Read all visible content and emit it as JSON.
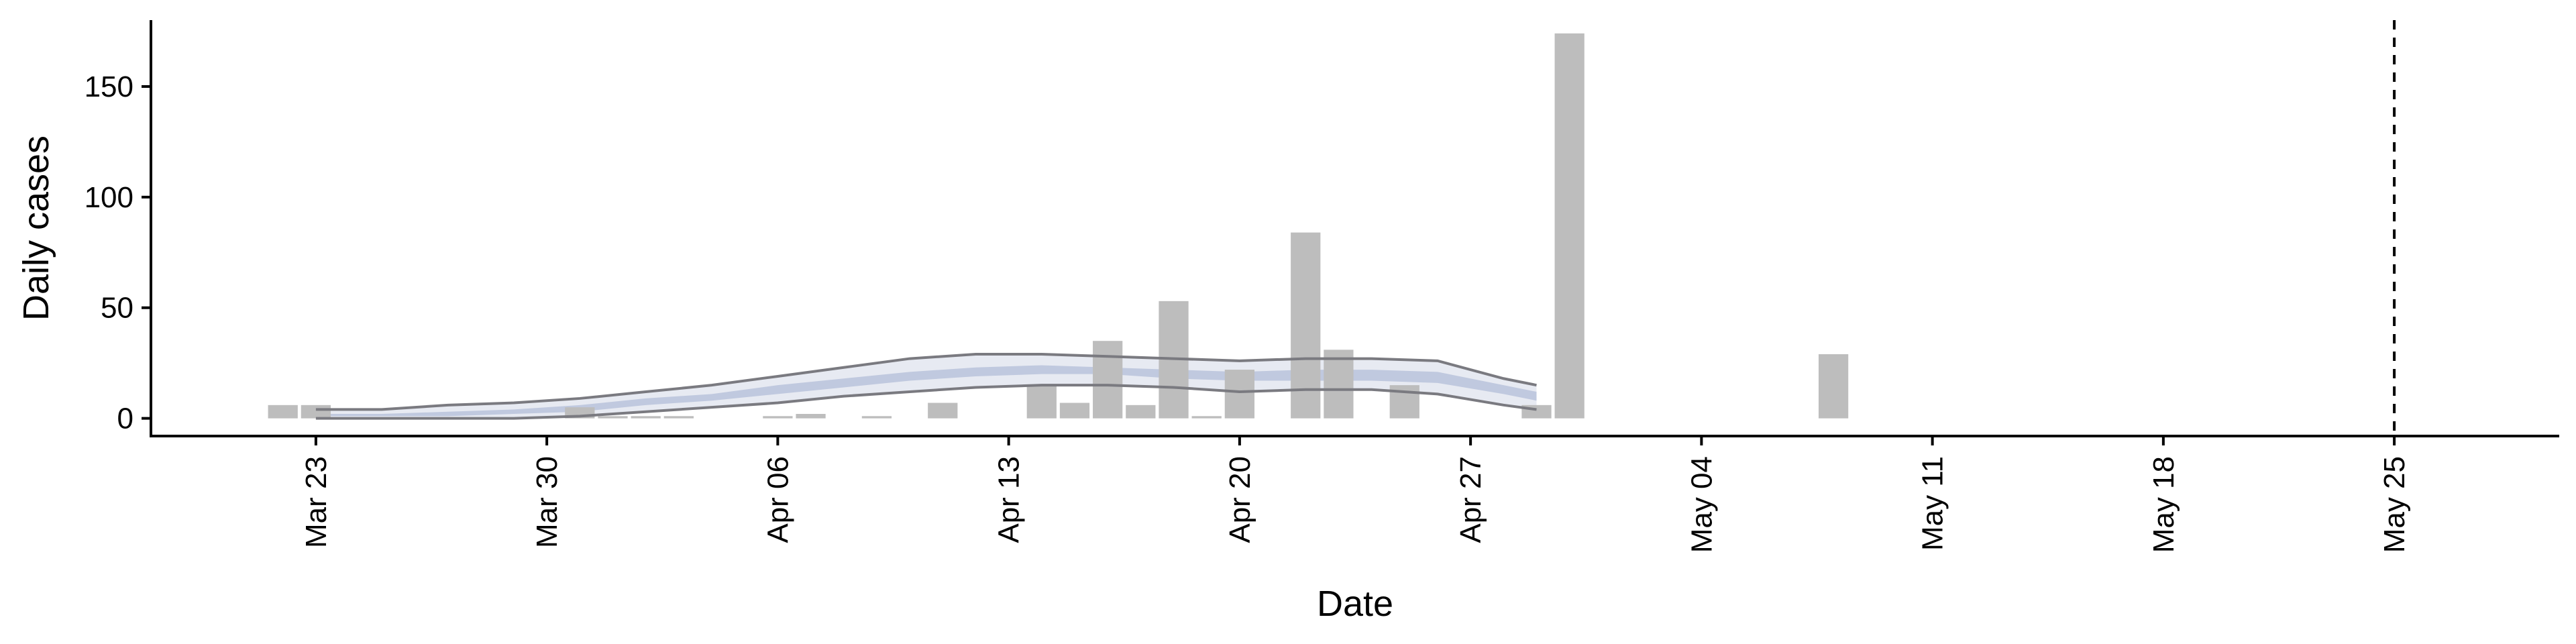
{
  "chart_data": {
    "type": "bar",
    "xlabel": "Date",
    "ylabel": "Daily cases",
    "x_range": [
      "2020-03-18",
      "2020-05-30"
    ],
    "ylim": [
      -8,
      180
    ],
    "y_ticks": [
      0,
      50,
      100,
      150
    ],
    "x_ticks": [
      {
        "date": "2020-03-23",
        "label": "Mar 23"
      },
      {
        "date": "2020-03-30",
        "label": "Mar 30"
      },
      {
        "date": "2020-04-06",
        "label": "Apr 06"
      },
      {
        "date": "2020-04-13",
        "label": "Apr 13"
      },
      {
        "date": "2020-04-20",
        "label": "Apr 20"
      },
      {
        "date": "2020-04-27",
        "label": "Apr 27"
      },
      {
        "date": "2020-05-04",
        "label": "May 04"
      },
      {
        "date": "2020-05-11",
        "label": "May 11"
      },
      {
        "date": "2020-05-18",
        "label": "May 18"
      },
      {
        "date": "2020-05-25",
        "label": "May 25"
      }
    ],
    "reference_line": {
      "date": "2020-05-25",
      "style": "dashed"
    },
    "grid": false,
    "bars": [
      {
        "date": "2020-03-22",
        "value": 6
      },
      {
        "date": "2020-03-23",
        "value": 6
      },
      {
        "date": "2020-03-31",
        "value": 5
      },
      {
        "date": "2020-04-01",
        "value": 1
      },
      {
        "date": "2020-04-02",
        "value": 1
      },
      {
        "date": "2020-04-03",
        "value": 1
      },
      {
        "date": "2020-04-06",
        "value": 1
      },
      {
        "date": "2020-04-07",
        "value": 2
      },
      {
        "date": "2020-04-09",
        "value": 1
      },
      {
        "date": "2020-04-11",
        "value": 7
      },
      {
        "date": "2020-04-14",
        "value": 15
      },
      {
        "date": "2020-04-15",
        "value": 7
      },
      {
        "date": "2020-04-16",
        "value": 35
      },
      {
        "date": "2020-04-17",
        "value": 6
      },
      {
        "date": "2020-04-18",
        "value": 53
      },
      {
        "date": "2020-04-19",
        "value": 1
      },
      {
        "date": "2020-04-20",
        "value": 22
      },
      {
        "date": "2020-04-22",
        "value": 84
      },
      {
        "date": "2020-04-23",
        "value": 31
      },
      {
        "date": "2020-04-25",
        "value": 15
      },
      {
        "date": "2020-04-29",
        "value": 6
      },
      {
        "date": "2020-04-30",
        "value": 174
      },
      {
        "date": "2020-05-08",
        "value": 29
      }
    ],
    "series": [
      {
        "band": "outer",
        "dates": [
          "2020-03-23",
          "2020-03-25",
          "2020-03-27",
          "2020-03-29",
          "2020-03-31",
          "2020-04-02",
          "2020-04-04",
          "2020-04-06",
          "2020-04-08",
          "2020-04-10",
          "2020-04-12",
          "2020-04-14",
          "2020-04-16",
          "2020-04-18",
          "2020-04-20",
          "2020-04-22",
          "2020-04-24",
          "2020-04-26",
          "2020-04-28",
          "2020-04-29"
        ],
        "lower": [
          0,
          0,
          0,
          0,
          1,
          3,
          5,
          7,
          10,
          12,
          14,
          15,
          15,
          14,
          12,
          13,
          13,
          11,
          6,
          4
        ],
        "upper": [
          4,
          4,
          6,
          7,
          9,
          12,
          15,
          19,
          23,
          27,
          29,
          29,
          28,
          27,
          26,
          27,
          27,
          26,
          18,
          15
        ]
      },
      {
        "band": "inner",
        "dates": [
          "2020-03-23",
          "2020-03-25",
          "2020-03-27",
          "2020-03-29",
          "2020-03-31",
          "2020-04-02",
          "2020-04-04",
          "2020-04-06",
          "2020-04-08",
          "2020-04-10",
          "2020-04-12",
          "2020-04-14",
          "2020-04-16",
          "2020-04-18",
          "2020-04-20",
          "2020-04-22",
          "2020-04-24",
          "2020-04-26",
          "2020-04-28",
          "2020-04-29"
        ],
        "lower": [
          1,
          1,
          1,
          2,
          3,
          6,
          8,
          11,
          14,
          17,
          19,
          20,
          20,
          18,
          17,
          17,
          17,
          16,
          11,
          8
        ],
        "upper": [
          2,
          2,
          3,
          4,
          6,
          9,
          11,
          15,
          18,
          21,
          23,
          24,
          23,
          22,
          21,
          22,
          22,
          21,
          15,
          12
        ]
      }
    ],
    "colors": {
      "bars": "#bdbdbd",
      "band_outer": "#dfe3ee",
      "band_inner": "#b7c0da",
      "bound_lines": "#7a7a80"
    }
  }
}
